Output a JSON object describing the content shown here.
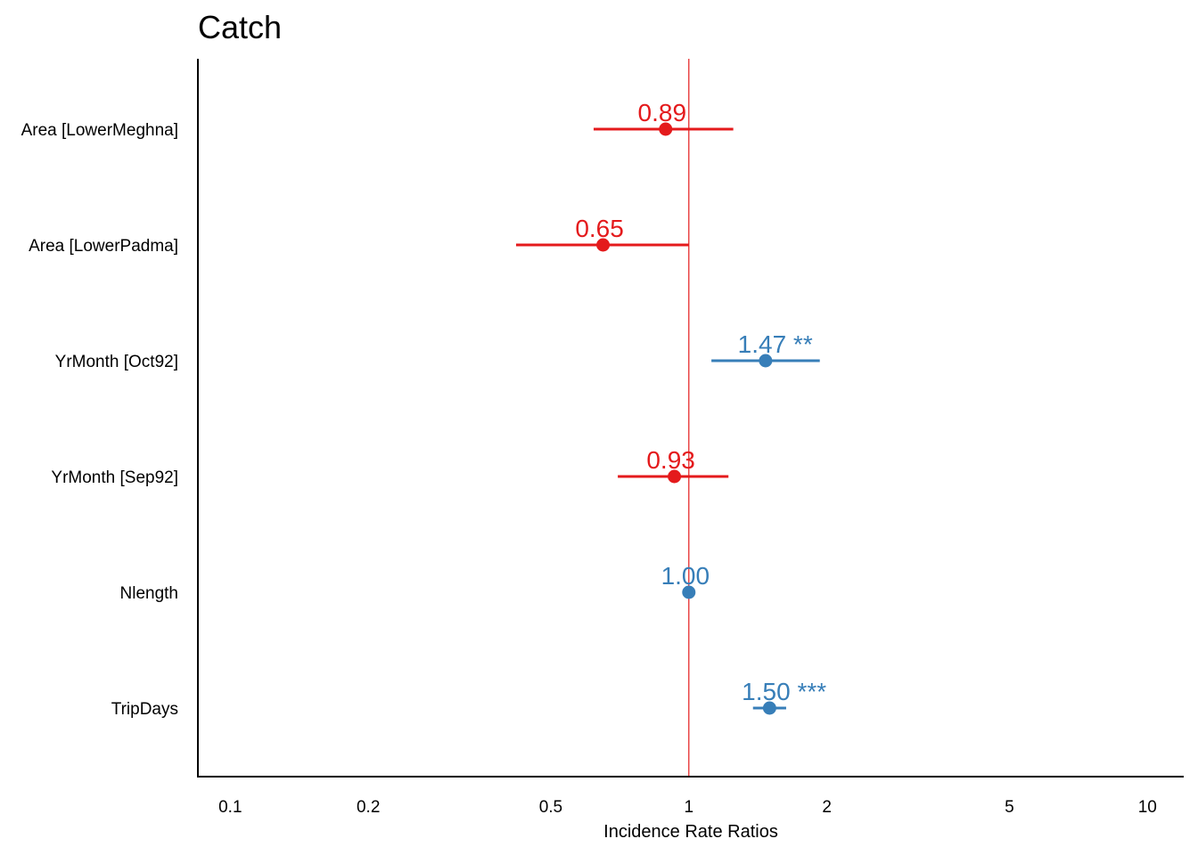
{
  "chart_data": {
    "type": "forest",
    "title": "Catch",
    "xlabel": "Incidence Rate Ratios",
    "x_scale": "log",
    "xlim": [
      0.085,
      12
    ],
    "x_ticks": [
      0.1,
      0.2,
      0.5,
      1,
      2,
      5,
      10
    ],
    "x_tick_labels": [
      "0.1",
      "0.2",
      "0.5",
      "1",
      "2",
      "5",
      "10"
    ],
    "reference_line": 1,
    "colors": {
      "positive": "#377eb8",
      "negative": "#e41a1c",
      "reference": "#e41a1c"
    },
    "rows": [
      {
        "term": "Area [LowerMeghna]",
        "estimate": 0.89,
        "ci_low": 0.62,
        "ci_high": 1.25,
        "label": "0.89",
        "stars": ""
      },
      {
        "term": "Area [LowerPadma]",
        "estimate": 0.65,
        "ci_low": 0.42,
        "ci_high": 1.0,
        "label": "0.65",
        "stars": ""
      },
      {
        "term": "YrMonth [Oct92]",
        "estimate": 1.47,
        "ci_low": 1.12,
        "ci_high": 1.93,
        "label": "1.47",
        "stars": "**"
      },
      {
        "term": "YrMonth [Sep92]",
        "estimate": 0.93,
        "ci_low": 0.7,
        "ci_high": 1.22,
        "label": "0.93",
        "stars": ""
      },
      {
        "term": "Nlength",
        "estimate": 1.0,
        "ci_low": 1.0,
        "ci_high": 1.0,
        "label": "1.00",
        "stars": ""
      },
      {
        "term": "TripDays",
        "estimate": 1.5,
        "ci_low": 1.38,
        "ci_high": 1.63,
        "label": "1.50",
        "stars": "***"
      }
    ]
  }
}
